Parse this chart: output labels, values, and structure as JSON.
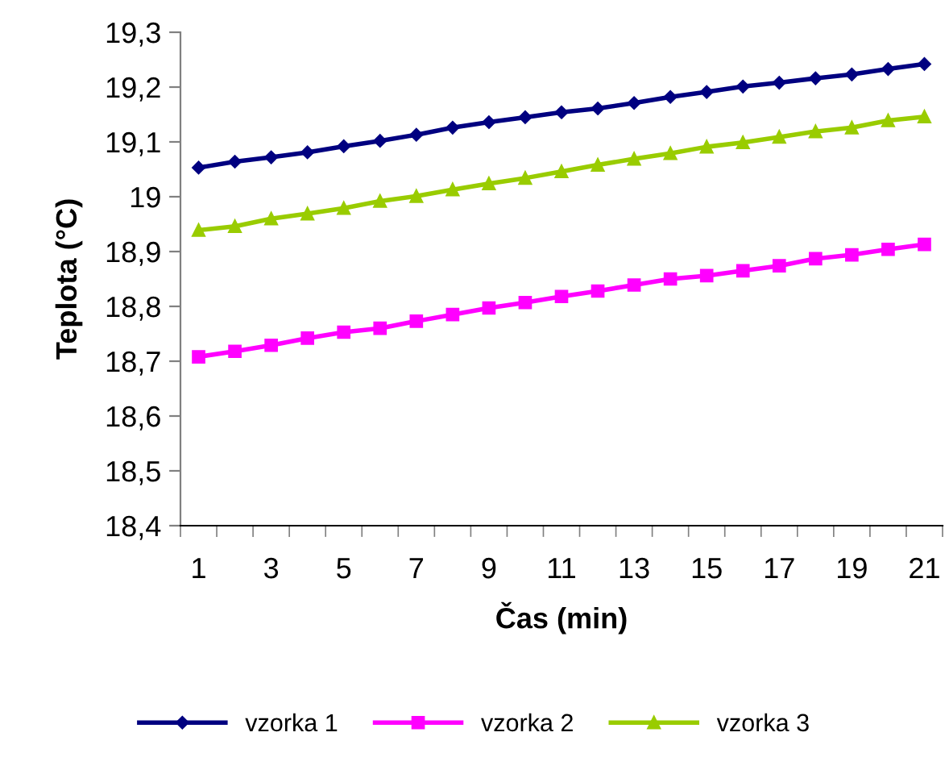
{
  "chart_data": {
    "type": "line",
    "xlabel": "Čas (min)",
    "ylabel": "Teplota (°C)",
    "categories": [
      "1",
      null,
      "3",
      null,
      "5",
      null,
      "7",
      null,
      "9",
      null,
      "11",
      null,
      "13",
      null,
      "15",
      null,
      "17",
      null,
      "19",
      null,
      "21"
    ],
    "series": [
      {
        "name": "vzorka 1",
        "color": "#000080",
        "marker": "diamond",
        "values": [
          19.053,
          19.064,
          19.072,
          19.081,
          19.092,
          19.102,
          19.113,
          19.126,
          19.136,
          19.145,
          19.154,
          19.161,
          19.171,
          19.182,
          19.191,
          19.201,
          19.208,
          19.216,
          19.223,
          19.233,
          19.242
        ]
      },
      {
        "name": "vzorka 2",
        "color": "#ff00ff",
        "marker": "square",
        "values": [
          18.708,
          18.718,
          18.729,
          18.742,
          18.753,
          18.76,
          18.773,
          18.785,
          18.797,
          18.807,
          18.818,
          18.828,
          18.839,
          18.85,
          18.856,
          18.865,
          18.874,
          18.887,
          18.894,
          18.904,
          18.913
        ]
      },
      {
        "name": "vzorka 3",
        "color": "#99cc00",
        "marker": "triangle",
        "values": [
          18.939,
          18.946,
          18.96,
          18.969,
          18.979,
          18.992,
          19.001,
          19.013,
          19.024,
          19.034,
          19.046,
          19.058,
          19.069,
          19.079,
          19.091,
          19.099,
          19.109,
          19.119,
          19.126,
          19.139,
          19.146
        ]
      }
    ],
    "ylim": [
      18.4,
      19.3
    ],
    "yticks": [
      {
        "value": 18.4,
        "label": "18,4"
      },
      {
        "value": 18.5,
        "label": "18,5"
      },
      {
        "value": 18.6,
        "label": "18,6"
      },
      {
        "value": 18.7,
        "label": "18,7"
      },
      {
        "value": 18.8,
        "label": "18,8"
      },
      {
        "value": 18.9,
        "label": "18,9"
      },
      19,
      {
        "value": 19.1,
        "label": "19,1"
      },
      {
        "value": 19.2,
        "label": "19,2"
      },
      {
        "value": 19.3,
        "label": "19,3"
      }
    ],
    "legend": "bottom",
    "grid": false,
    "line_style": "solid"
  }
}
